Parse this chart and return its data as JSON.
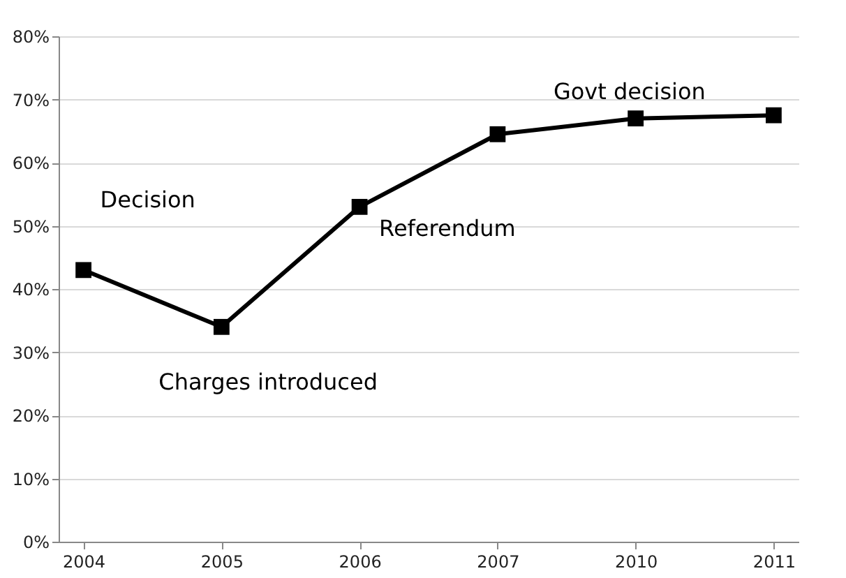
{
  "chart_data": {
    "type": "line",
    "categories": [
      "2004",
      "2005",
      "2006",
      "2007",
      "2010",
      "2011"
    ],
    "values": [
      43,
      34,
      53,
      64.5,
      67,
      67.5
    ],
    "color": "#000000",
    "ylim": [
      0,
      80
    ],
    "yticks": [
      {
        "value": 0,
        "label": "0%"
      },
      {
        "value": 10,
        "label": "10%"
      },
      {
        "value": 20,
        "label": "20%"
      },
      {
        "value": 30,
        "label": "30%"
      },
      {
        "value": 40,
        "label": "40%"
      },
      {
        "value": 50,
        "label": "50%"
      },
      {
        "value": 60,
        "label": "60%"
      },
      {
        "value": 70,
        "label": "70%"
      },
      {
        "value": 80,
        "label": "80%"
      }
    ],
    "grid": "y",
    "marker": "square",
    "line_style": "solid",
    "annotations": [
      {
        "text": "Decision",
        "x": "2004",
        "y": 43
      },
      {
        "text": "Charges introduced",
        "x": "2005",
        "y": 34
      },
      {
        "text": "Referendum",
        "x": "2006",
        "y": 53
      },
      {
        "text": "Govt decision",
        "x": "2007",
        "y": 64.5
      }
    ]
  }
}
